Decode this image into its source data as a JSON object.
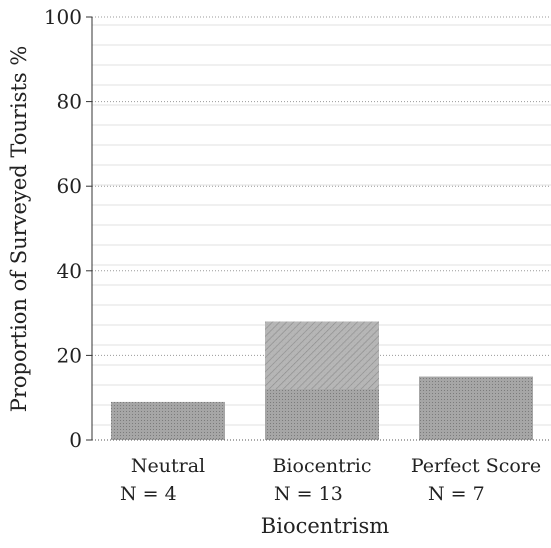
{
  "chart_data": {
    "type": "bar",
    "title": "",
    "xlabel": "Biocentrism",
    "ylabel": "Proportion of Surveyed Tourists %",
    "ylim": [
      0,
      100
    ],
    "yticks": [
      0,
      20,
      40,
      60,
      80,
      100
    ],
    "grid": true,
    "categories": [
      "Neutral",
      "Biocentric",
      "Perfect Score"
    ],
    "category_counts": [
      "N = 4",
      "N = 13",
      "N = 7"
    ],
    "values": [
      9,
      28,
      15
    ],
    "colors": {
      "bar": "#9a9a9a",
      "bar_highlight": "#b4b4b4",
      "grid": "#e6e6e6",
      "gridline": "#9a9a9a"
    }
  }
}
